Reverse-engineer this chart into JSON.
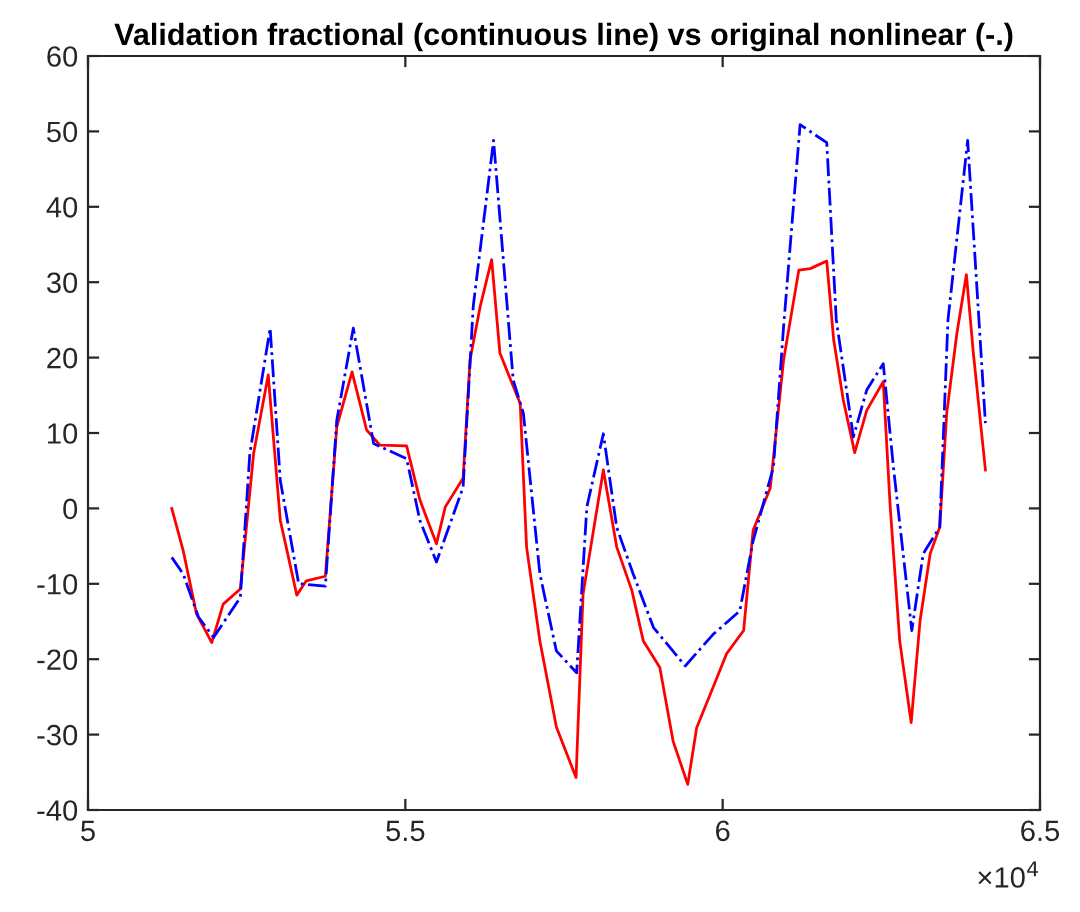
{
  "chart_data": {
    "type": "line",
    "title": "Validation fractional (continuous line) vs original nonlinear (-.)",
    "xlim": [
      5,
      6.5
    ],
    "xticks": [
      5,
      5.5,
      6,
      6.5
    ],
    "ylim": [
      -40,
      60
    ],
    "yticks": [
      -40,
      -30,
      -20,
      -10,
      0,
      10,
      20,
      30,
      40,
      50,
      60
    ],
    "annotations": [
      "×10$^{4}$"
    ],
    "series": [
      {
        "color": "#ff0000",
        "line_style": "solid",
        "x": [
          5.132,
          5.15,
          5.171,
          5.195,
          5.213,
          5.24,
          5.261,
          5.284,
          5.303,
          5.329,
          5.344,
          5.374,
          5.392,
          5.416,
          5.439,
          5.46,
          5.502,
          5.523,
          5.549,
          5.563,
          5.591,
          5.602,
          5.618,
          5.636,
          5.649,
          5.681,
          5.691,
          5.712,
          5.738,
          5.769,
          5.78,
          5.812,
          5.833,
          5.857,
          5.875,
          5.901,
          5.922,
          5.945,
          5.959,
          5.987,
          6.006,
          6.033,
          6.048,
          6.075,
          6.096,
          6.12,
          6.138,
          6.164,
          6.175,
          6.19,
          6.208,
          6.227,
          6.253,
          6.264,
          6.279,
          6.297,
          6.311,
          6.327,
          6.342,
          6.353,
          6.369,
          6.384,
          6.395,
          6.414
        ],
        "values": [
          0,
          -5.6,
          -14,
          -17.8,
          -12.7,
          -10.7,
          7.3,
          17.7,
          -1.6,
          -11.5,
          -9.6,
          -9,
          10.8,
          18.1,
          10.4,
          8.4,
          8.3,
          1.1,
          -4.7,
          0.2,
          4,
          19.7,
          26.8,
          33,
          20.6,
          13.9,
          -5.1,
          -17.6,
          -29,
          -35.7,
          -11.4,
          5.1,
          -5.1,
          -10.9,
          -17.6,
          -21.1,
          -30.9,
          -36.6,
          -29.1,
          -23.3,
          -19.3,
          -16.2,
          -2.9,
          2.7,
          19.7,
          31.6,
          31.8,
          32.8,
          22.3,
          14.4,
          7.4,
          13,
          16.8,
          0.2,
          -17.6,
          -28.4,
          -14.9,
          -6,
          -2.5,
          12.6,
          23.2,
          31,
          20.6,
          5.1
        ]
      },
      {
        "color": "#0000ff",
        "line_style": "dashdot",
        "x": [
          5.132,
          5.15,
          5.174,
          5.198,
          5.24,
          5.255,
          5.287,
          5.303,
          5.332,
          5.374,
          5.392,
          5.418,
          5.45,
          5.502,
          5.523,
          5.549,
          5.591,
          5.607,
          5.639,
          5.67,
          5.686,
          5.712,
          5.738,
          5.77,
          5.786,
          5.812,
          5.833,
          5.859,
          5.891,
          5.941,
          5.985,
          6.027,
          6.048,
          6.08,
          6.096,
          6.122,
          6.164,
          6.179,
          6.206,
          6.227,
          6.253,
          6.269,
          6.298,
          6.316,
          6.342,
          6.355,
          6.386,
          6.414
        ],
        "values": [
          -6.5,
          -8.7,
          -14.4,
          -17.1,
          -11.8,
          7.3,
          23.9,
          3.7,
          -10,
          -10.3,
          11.7,
          23.9,
          8.6,
          6.6,
          -1.6,
          -7.1,
          2.8,
          26.8,
          48.8,
          17,
          12.6,
          -8.7,
          -18.9,
          -21.8,
          0.2,
          9.9,
          -2.5,
          -8.7,
          -15.8,
          -20.9,
          -16.7,
          -13.6,
          -4.3,
          5.5,
          24.1,
          50.9,
          48.5,
          25,
          9.5,
          15.7,
          19.2,
          5.5,
          -16.2,
          -6,
          -2.5,
          25,
          48.8,
          11.3
        ]
      }
    ]
  }
}
